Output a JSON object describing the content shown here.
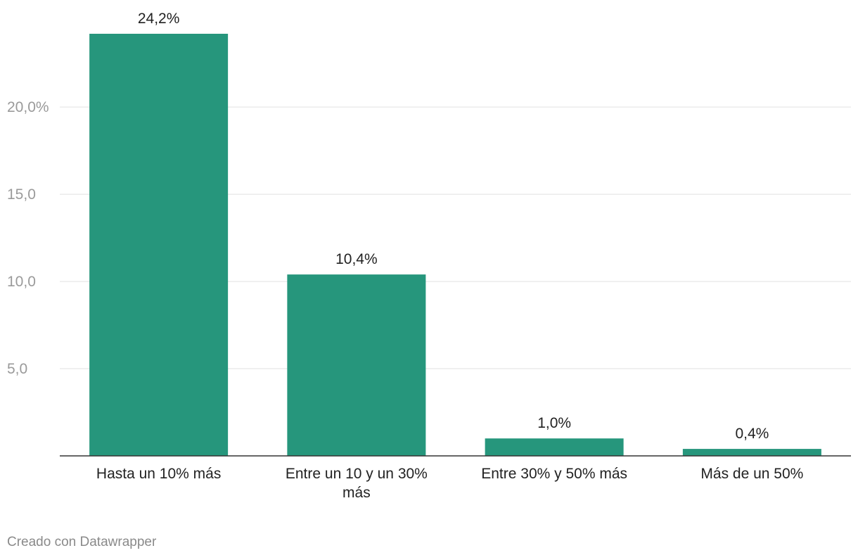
{
  "chart_data": {
    "type": "bar",
    "categories": [
      "Hasta un 10% más",
      "Entre un 10 y un 30% más",
      "Entre 30% y 50% más",
      "Más de un 50%"
    ],
    "category_lines": [
      [
        "Hasta un 10% más"
      ],
      [
        "Entre un 10 y un 30%",
        "más"
      ],
      [
        "Entre 30% y 50% más"
      ],
      [
        "Más de un 50%"
      ]
    ],
    "values": [
      24.2,
      10.4,
      1.0,
      0.4
    ],
    "value_labels": [
      "24,2%",
      "10,4%",
      "1,0%",
      "0,4%"
    ],
    "yticks": [
      5,
      10,
      15,
      20
    ],
    "ytick_labels": [
      "5,0",
      "10,0",
      "15,0",
      "20,0%"
    ],
    "ylim": [
      0,
      24.2
    ],
    "grid": true,
    "bar_color": "#26967c"
  },
  "footer": {
    "credit": "Creado con Datawrapper"
  }
}
